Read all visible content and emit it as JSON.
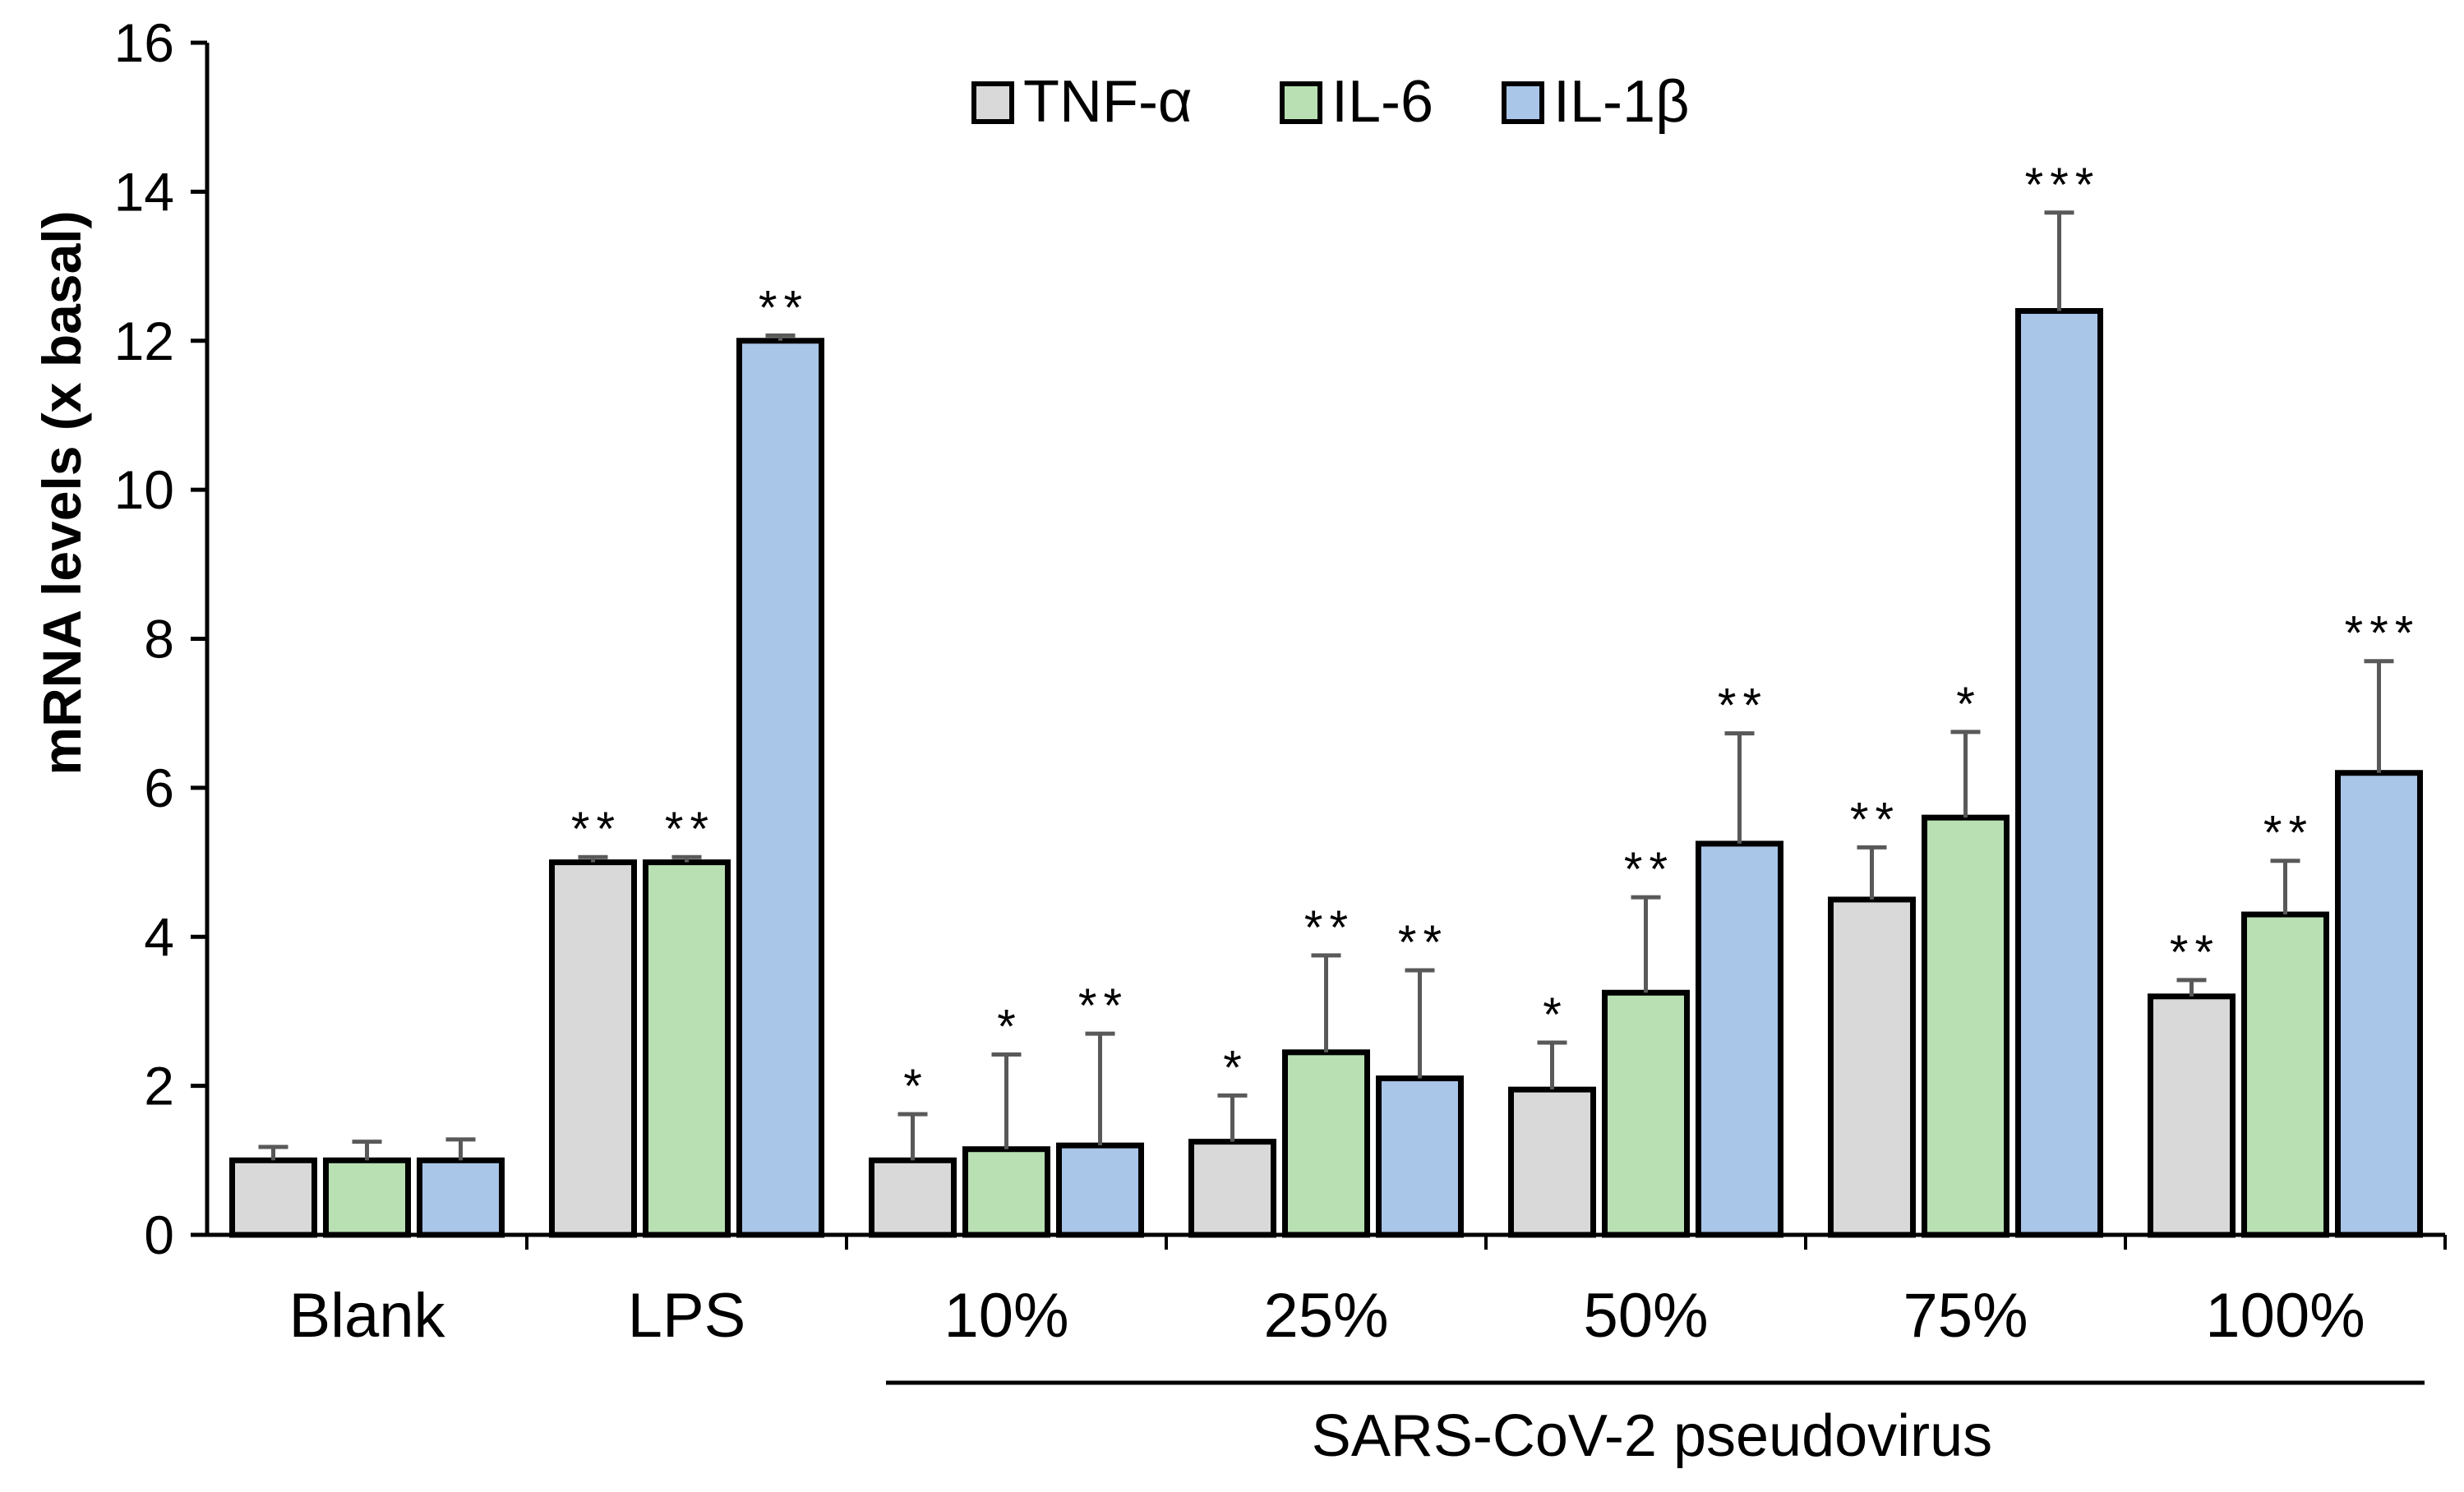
{
  "chart_data": {
    "type": "bar",
    "title": "",
    "xlabel": "",
    "ylabel": "mRNA levels  (x basal)",
    "ylim": [
      0,
      16
    ],
    "yticks": [
      0,
      2,
      4,
      6,
      8,
      10,
      12,
      14,
      16
    ],
    "grid": false,
    "legend_position": "top-center",
    "categories": [
      "Blank",
      "LPS",
      "10%",
      "25%",
      "50%",
      "75%",
      "100%"
    ],
    "group_label": "SARS-CoV-2 pseudovirus",
    "group_label_categories": [
      "10%",
      "25%",
      "50%",
      "75%",
      "100%"
    ],
    "series": [
      {
        "name": "TNF-α",
        "color": "#d9d9d9",
        "values": [
          1.0,
          5.0,
          1.0,
          1.25,
          1.95,
          4.5,
          3.2
        ],
        "errors": [
          0.18,
          0.07,
          0.62,
          0.62,
          0.63,
          0.7,
          0.22
        ],
        "significance": [
          "",
          "**",
          "*",
          "*",
          "*",
          "**",
          "**"
        ]
      },
      {
        "name": "IL-6",
        "color": "#b9e0b3",
        "values": [
          1.0,
          5.0,
          1.15,
          2.45,
          3.25,
          5.6,
          4.3
        ],
        "errors": [
          0.25,
          0.07,
          1.27,
          1.3,
          1.28,
          1.15,
          0.72
        ],
        "significance": [
          "",
          "**",
          "*",
          "**",
          "**",
          "*",
          "**"
        ]
      },
      {
        "name": "IL-1β",
        "color": "#a9c5e8",
        "values": [
          1.0,
          12.0,
          1.2,
          2.1,
          5.25,
          12.4,
          6.2
        ],
        "errors": [
          0.28,
          0.07,
          1.5,
          1.45,
          1.48,
          1.32,
          1.5
        ],
        "significance": [
          "",
          "**",
          "**",
          "**",
          "**",
          "***",
          "***"
        ]
      }
    ]
  }
}
